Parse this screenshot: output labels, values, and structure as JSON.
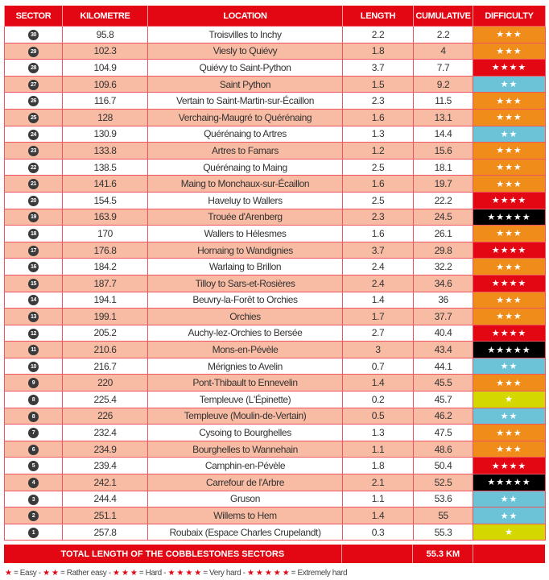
{
  "headers": [
    "SECTOR",
    "KILOMETRE",
    "LOCATION",
    "LENGTH",
    "CUMULATIVE",
    "DIFFICULTY"
  ],
  "colors": {
    "header": "#e30613",
    "row_alt": "#f8bba3",
    "1": "#d4d800",
    "2": "#6cc3d8",
    "3": "#f08c1a",
    "4": "#e30613",
    "5": "#000000"
  },
  "rows": [
    [
      "30",
      "95.8",
      "Troisvilles to Inchy",
      "2.2",
      "2.2",
      3
    ],
    [
      "29",
      "102.3",
      "Viesly to Quiévy",
      "1.8",
      "4",
      3
    ],
    [
      "28",
      "104.9",
      "Quiévy to Saint-Python",
      "3.7",
      "7.7",
      4
    ],
    [
      "27",
      "109.6",
      "Saint Python",
      "1.5",
      "9.2",
      2
    ],
    [
      "26",
      "116.7",
      "Vertain to Saint-Martin-sur-Écaillon",
      "2.3",
      "11.5",
      3
    ],
    [
      "25",
      "128",
      "Verchaing-Maugré to Quérénaing",
      "1.6",
      "13.1",
      3
    ],
    [
      "24",
      "130.9",
      "Quérénaing to Artres",
      "1.3",
      "14.4",
      2
    ],
    [
      "23",
      "133.8",
      "Artres to Famars",
      "1.2",
      "15.6",
      3
    ],
    [
      "22",
      "138.5",
      "Quérénaing to Maing",
      "2.5",
      "18.1",
      3
    ],
    [
      "21",
      "141.6",
      "Maing to Monchaux-sur-Écaillon",
      "1.6",
      "19.7",
      3
    ],
    [
      "20",
      "154.5",
      "Haveluy to Wallers",
      "2.5",
      "22.2",
      4
    ],
    [
      "19",
      "163.9",
      "Trouée d'Arenberg",
      "2.3",
      "24.5",
      5
    ],
    [
      "18",
      "170",
      "Wallers to Hélesmes",
      "1.6",
      "26.1",
      3
    ],
    [
      "17",
      "176.8",
      "Hornaing to Wandignies",
      "3.7",
      "29.8",
      4
    ],
    [
      "16",
      "184.2",
      "Warlaing to Brillon",
      "2.4",
      "32.2",
      3
    ],
    [
      "15",
      "187.7",
      "Tilloy to Sars-et-Rosières",
      "2.4",
      "34.6",
      4
    ],
    [
      "14",
      "194.1",
      "Beuvry-la-Forêt to Orchies",
      "1.4",
      "36",
      3
    ],
    [
      "13",
      "199.1",
      "Orchies",
      "1.7",
      "37.7",
      3
    ],
    [
      "12",
      "205.2",
      "Auchy-lez-Orchies to Bersée",
      "2.7",
      "40.4",
      4
    ],
    [
      "11",
      "210.6",
      "Mons-en-Pévèle",
      "3",
      "43.4",
      5
    ],
    [
      "10",
      "216.7",
      "Mérignies to Avelin",
      "0.7",
      "44.1",
      2
    ],
    [
      "9",
      "220",
      "Pont-Thibault to Ennevelin",
      "1.4",
      "45.5",
      3
    ],
    [
      "8",
      "225.4",
      "Templeuve (L'Épinette)",
      "0.2",
      "45.7",
      1
    ],
    [
      "8",
      "226",
      "Templeuve (Moulin-de-Vertain)",
      "0.5",
      "46.2",
      2
    ],
    [
      "7",
      "232.4",
      "Cysoing to Bourghelles",
      "1.3",
      "47.5",
      3
    ],
    [
      "6",
      "234.9",
      "Bourghelles to Wannehain",
      "1.1",
      "48.6",
      3
    ],
    [
      "5",
      "239.4",
      "Camphin-en-Pévèle",
      "1.8",
      "50.4",
      4
    ],
    [
      "4",
      "242.1",
      "Carrefour de l'Arbre",
      "2.1",
      "52.5",
      5
    ],
    [
      "3",
      "244.4",
      "Gruson",
      "1.1",
      "53.6",
      2
    ],
    [
      "2",
      "251.1",
      "Willems to Hem",
      "1.4",
      "55",
      2
    ],
    [
      "1",
      "257.8",
      "Roubaix (Espace Charles Crupelandt)",
      "0.3",
      "55.3",
      1
    ]
  ],
  "total": {
    "label": "TOTAL LENGTH OF THE COBBLESTONES SECTORS",
    "value": "55.3 KM"
  },
  "legend": [
    {
      "stars": "★",
      "label": " = Easy - "
    },
    {
      "stars": "★ ★",
      "label": " = Rather easy - "
    },
    {
      "stars": "★ ★ ★",
      "label": " = Hard - "
    },
    {
      "stars": "★ ★ ★ ★",
      "label": " = Very hard - "
    },
    {
      "stars": "★ ★ ★ ★ ★",
      "label": " = Extremely hard"
    }
  ]
}
